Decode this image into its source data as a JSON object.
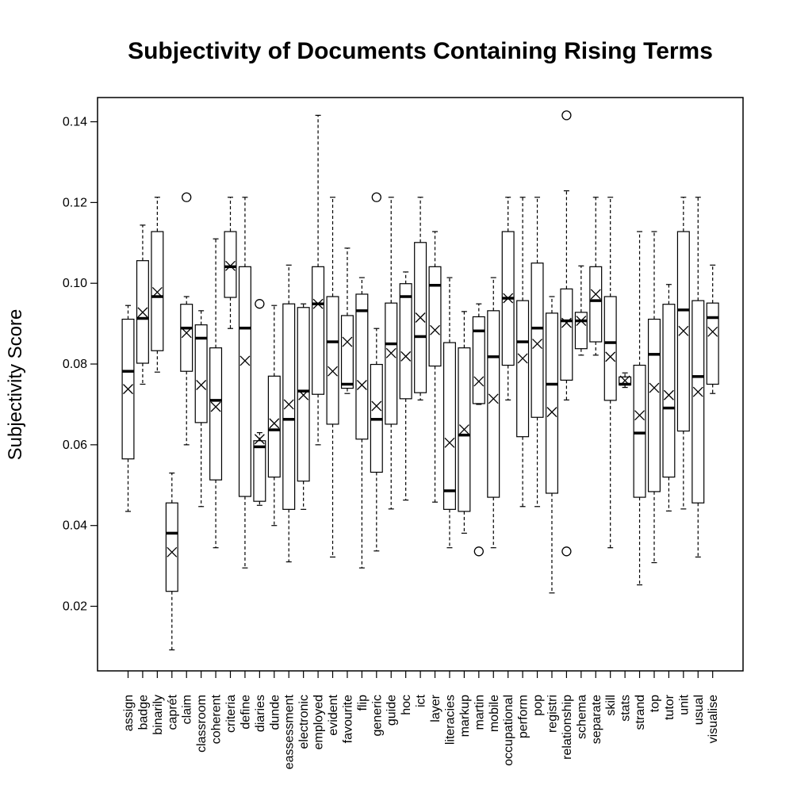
{
  "chart_data": {
    "type": "box",
    "title": "Subjectivity of Documents Containing Rising Terms",
    "xlabel": "",
    "ylabel": "Subjectivity Score",
    "ylim": [
      0.004,
      0.146
    ],
    "yticks": [
      "0.02",
      "0.04",
      "0.06",
      "0.08",
      "0.10",
      "0.12",
      "0.14"
    ],
    "mean_marker": "x",
    "outlier_marker": "circle",
    "categories": [
      "assign",
      "badge",
      "binarily",
      "caprét",
      "claim",
      "classroom",
      "coherent",
      "criteria",
      "define",
      "diaries",
      "dunde",
      "eassessment",
      "electronic",
      "employed",
      "evident",
      "favourite",
      "flip",
      "generic",
      "guide",
      "hoc",
      "ict",
      "layer",
      "literacies",
      "markup",
      "martin",
      "mobile",
      "occupational",
      "perform",
      "pop",
      "registri",
      "relationship",
      "schema",
      "separate",
      "skill",
      "stats",
      "strand",
      "top",
      "tutor",
      "unit",
      "usual",
      "visualise"
    ],
    "boxes": [
      {
        "min": 0.0435,
        "q1": 0.0565,
        "median": 0.0782,
        "q3": 0.0911,
        "max": 0.0945,
        "mean": 0.0738,
        "outliers": []
      },
      {
        "min": 0.075,
        "q1": 0.0802,
        "median": 0.0913,
        "q3": 0.1056,
        "max": 0.1144,
        "mean": 0.0928,
        "outliers": []
      },
      {
        "min": 0.078,
        "q1": 0.0833,
        "median": 0.0967,
        "q3": 0.1128,
        "max": 0.1213,
        "mean": 0.0978,
        "outliers": []
      },
      {
        "min": 0.0092,
        "q1": 0.0237,
        "median": 0.0381,
        "q3": 0.0456,
        "max": 0.053,
        "mean": 0.0334,
        "outliers": []
      },
      {
        "min": 0.06,
        "q1": 0.0782,
        "median": 0.0889,
        "q3": 0.0948,
        "max": 0.0967,
        "mean": 0.0877,
        "outliers": [
          0.1213
        ]
      },
      {
        "min": 0.0447,
        "q1": 0.0655,
        "median": 0.0864,
        "q3": 0.0897,
        "max": 0.0932,
        "mean": 0.0748,
        "outliers": []
      },
      {
        "min": 0.0345,
        "q1": 0.0513,
        "median": 0.071,
        "q3": 0.084,
        "max": 0.111,
        "mean": 0.0694,
        "outliers": []
      },
      {
        "min": 0.0888,
        "q1": 0.0965,
        "median": 0.1041,
        "q3": 0.1128,
        "max": 0.1213,
        "mean": 0.1043,
        "outliers": []
      },
      {
        "min": 0.0295,
        "q1": 0.0472,
        "median": 0.0889,
        "q3": 0.1041,
        "max": 0.1213,
        "mean": 0.0808,
        "outliers": []
      },
      {
        "min": 0.045,
        "q1": 0.046,
        "median": 0.0595,
        "q3": 0.061,
        "max": 0.063,
        "mean": 0.0614,
        "outliers": [
          0.0949
        ]
      },
      {
        "min": 0.04,
        "q1": 0.052,
        "median": 0.0637,
        "q3": 0.077,
        "max": 0.0945,
        "mean": 0.0653,
        "outliers": []
      },
      {
        "min": 0.031,
        "q1": 0.044,
        "median": 0.0663,
        "q3": 0.0949,
        "max": 0.1045,
        "mean": 0.07,
        "outliers": []
      },
      {
        "min": 0.044,
        "q1": 0.051,
        "median": 0.0733,
        "q3": 0.094,
        "max": 0.0949,
        "mean": 0.0723,
        "outliers": []
      },
      {
        "min": 0.06,
        "q1": 0.0725,
        "median": 0.0949,
        "q3": 0.1041,
        "max": 0.1416,
        "mean": 0.0949,
        "outliers": []
      },
      {
        "min": 0.0322,
        "q1": 0.0651,
        "median": 0.0855,
        "q3": 0.0967,
        "max": 0.1213,
        "mean": 0.0782,
        "outliers": []
      },
      {
        "min": 0.0727,
        "q1": 0.074,
        "median": 0.075,
        "q3": 0.092,
        "max": 0.1087,
        "mean": 0.0855,
        "outliers": []
      },
      {
        "min": 0.0295,
        "q1": 0.0614,
        "median": 0.0932,
        "q3": 0.0973,
        "max": 0.1014,
        "mean": 0.0748,
        "outliers": []
      },
      {
        "min": 0.0337,
        "q1": 0.0532,
        "median": 0.0663,
        "q3": 0.0799,
        "max": 0.0888,
        "mean": 0.0696,
        "outliers": [
          0.1213
        ]
      },
      {
        "min": 0.0441,
        "q1": 0.0651,
        "median": 0.085,
        "q3": 0.0951,
        "max": 0.1213,
        "mean": 0.0827,
        "outliers": []
      },
      {
        "min": 0.0463,
        "q1": 0.0714,
        "median": 0.0967,
        "q3": 0.0999,
        "max": 0.1028,
        "mean": 0.0819,
        "outliers": []
      },
      {
        "min": 0.0711,
        "q1": 0.0729,
        "median": 0.0868,
        "q3": 0.1101,
        "max": 0.1213,
        "mean": 0.0915,
        "outliers": []
      },
      {
        "min": 0.0458,
        "q1": 0.0795,
        "median": 0.0995,
        "q3": 0.1041,
        "max": 0.1128,
        "mean": 0.0884,
        "outliers": []
      },
      {
        "min": 0.0345,
        "q1": 0.044,
        "median": 0.0486,
        "q3": 0.0853,
        "max": 0.1014,
        "mean": 0.0605,
        "outliers": []
      },
      {
        "min": 0.0381,
        "q1": 0.0435,
        "median": 0.0624,
        "q3": 0.084,
        "max": 0.093,
        "mean": 0.0638,
        "outliers": []
      },
      {
        "min": 0.07,
        "q1": 0.0702,
        "median": 0.0882,
        "q3": 0.0917,
        "max": 0.0949,
        "mean": 0.0757,
        "outliers": [
          0.0336
        ]
      },
      {
        "min": 0.0345,
        "q1": 0.047,
        "median": 0.0818,
        "q3": 0.0932,
        "max": 0.1014,
        "mean": 0.0714,
        "outliers": []
      },
      {
        "min": 0.0711,
        "q1": 0.0797,
        "median": 0.0963,
        "q3": 0.1128,
        "max": 0.1213,
        "mean": 0.0963,
        "outliers": []
      },
      {
        "min": 0.0447,
        "q1": 0.062,
        "median": 0.0855,
        "q3": 0.0957,
        "max": 0.1213,
        "mean": 0.0814,
        "outliers": []
      },
      {
        "min": 0.0447,
        "q1": 0.0668,
        "median": 0.0889,
        "q3": 0.105,
        "max": 0.1213,
        "mean": 0.085,
        "outliers": []
      },
      {
        "min": 0.0233,
        "q1": 0.048,
        "median": 0.075,
        "q3": 0.0926,
        "max": 0.0967,
        "mean": 0.0681,
        "outliers": []
      },
      {
        "min": 0.0711,
        "q1": 0.076,
        "median": 0.0907,
        "q3": 0.0986,
        "max": 0.1229,
        "mean": 0.0902,
        "outliers": [
          0.1416,
          0.0336
        ]
      },
      {
        "min": 0.0822,
        "q1": 0.0838,
        "median": 0.0907,
        "q3": 0.0928,
        "max": 0.1043,
        "mean": 0.0907,
        "outliers": []
      },
      {
        "min": 0.0822,
        "q1": 0.0855,
        "median": 0.0957,
        "q3": 0.1041,
        "max": 0.1213,
        "mean": 0.0973,
        "outliers": []
      },
      {
        "min": 0.0345,
        "q1": 0.071,
        "median": 0.0853,
        "q3": 0.0967,
        "max": 0.1213,
        "mean": 0.0818,
        "outliers": []
      },
      {
        "min": 0.0742,
        "q1": 0.0748,
        "median": 0.075,
        "q3": 0.0768,
        "max": 0.0778,
        "mean": 0.0759,
        "outliers": []
      },
      {
        "min": 0.0253,
        "q1": 0.047,
        "median": 0.0629,
        "q3": 0.0797,
        "max": 0.1128,
        "mean": 0.0673,
        "outliers": []
      },
      {
        "min": 0.0308,
        "q1": 0.0484,
        "median": 0.0824,
        "q3": 0.0911,
        "max": 0.1128,
        "mean": 0.0741,
        "outliers": []
      },
      {
        "min": 0.0436,
        "q1": 0.052,
        "median": 0.0691,
        "q3": 0.0948,
        "max": 0.0997,
        "mean": 0.0723,
        "outliers": []
      },
      {
        "min": 0.0441,
        "q1": 0.0634,
        "median": 0.0934,
        "q3": 0.1128,
        "max": 0.1213,
        "mean": 0.0882,
        "outliers": []
      },
      {
        "min": 0.0322,
        "q1": 0.0456,
        "median": 0.0769,
        "q3": 0.0957,
        "max": 0.1213,
        "mean": 0.0731,
        "outliers": []
      },
      {
        "min": 0.0727,
        "q1": 0.075,
        "median": 0.0915,
        "q3": 0.0951,
        "max": 0.1045,
        "mean": 0.088,
        "outliers": []
      }
    ]
  }
}
